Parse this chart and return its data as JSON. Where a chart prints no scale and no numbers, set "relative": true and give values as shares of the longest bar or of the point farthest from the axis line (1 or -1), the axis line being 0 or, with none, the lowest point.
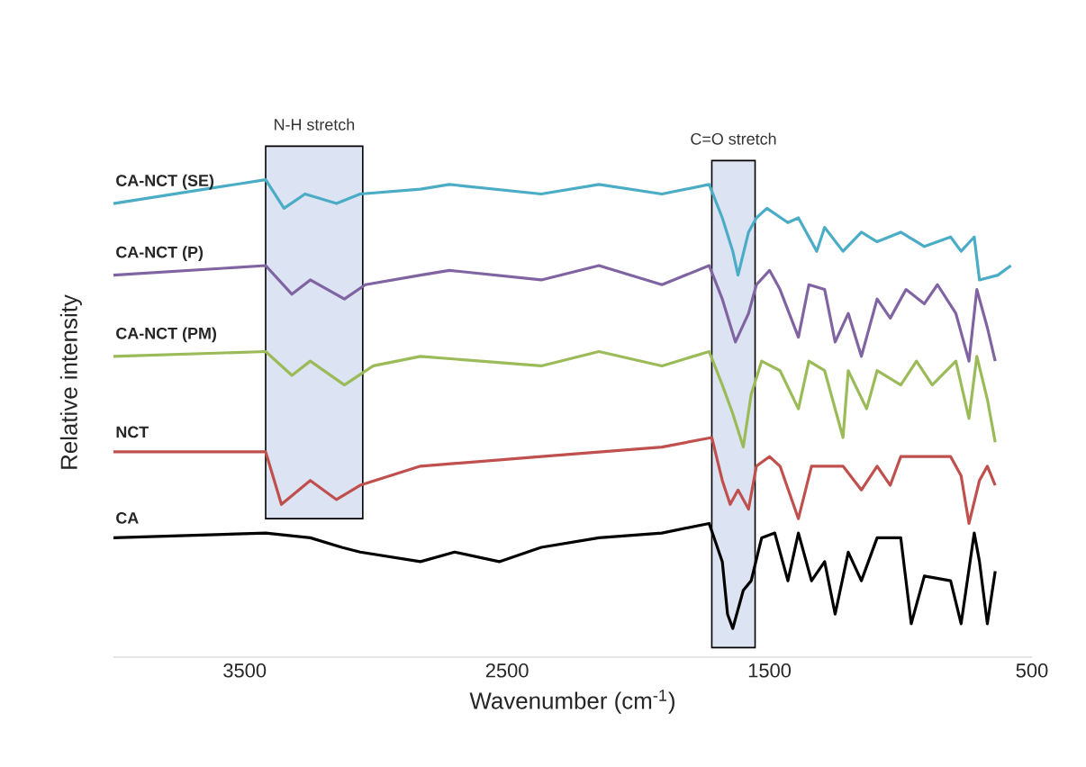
{
  "chart_data": {
    "type": "line",
    "relative": true,
    "xlabel": "Wavenumber (cm$^{-1}$)",
    "ylabel": "Relative intensity",
    "xlim": [
      4000,
      500
    ],
    "xticks": [
      3500,
      2500,
      1500,
      500
    ],
    "bands": [
      {
        "axis": "x",
        "from": 3420,
        "to": 3050,
        "label": "N-H stretch",
        "color": "#dce3f2"
      },
      {
        "axis": "x",
        "from": 1720,
        "to": 1555,
        "label": "C=O stretch",
        "color": "#dce3f2"
      }
    ],
    "series": [
      {
        "name": "CA-NCT (SE)",
        "color": "#4bacc6",
        "x": [
          4000,
          3420,
          3350,
          3270,
          3150,
          3060,
          2830,
          2720,
          2370,
          2150,
          1910,
          1730,
          1680,
          1640,
          1620,
          1580,
          1550,
          1510,
          1430,
          1390,
          1320,
          1290,
          1220,
          1150,
          1090,
          1000,
          910,
          810,
          770,
          720,
          700,
          630,
          580
        ],
        "values": [
          0.95,
          1.0,
          0.94,
          0.97,
          0.95,
          0.97,
          0.98,
          0.99,
          0.97,
          0.99,
          0.97,
          0.99,
          0.92,
          0.85,
          0.8,
          0.89,
          0.92,
          0.94,
          0.91,
          0.92,
          0.85,
          0.9,
          0.85,
          0.89,
          0.87,
          0.89,
          0.86,
          0.88,
          0.85,
          0.88,
          0.79,
          0.8,
          0.82
        ]
      },
      {
        "name": "CA-NCT (P)",
        "color": "#8064a2",
        "x": [
          4000,
          3420,
          3320,
          3250,
          3120,
          3040,
          2830,
          2720,
          2370,
          2150,
          1910,
          1730,
          1680,
          1630,
          1580,
          1550,
          1500,
          1460,
          1390,
          1350,
          1290,
          1250,
          1200,
          1150,
          1090,
          1040,
          980,
          910,
          860,
          790,
          740,
          710,
          670,
          640
        ],
        "values": [
          0.8,
          0.82,
          0.76,
          0.79,
          0.75,
          0.78,
          0.8,
          0.81,
          0.79,
          0.82,
          0.78,
          0.82,
          0.75,
          0.66,
          0.72,
          0.78,
          0.81,
          0.77,
          0.67,
          0.78,
          0.77,
          0.66,
          0.72,
          0.63,
          0.75,
          0.71,
          0.77,
          0.74,
          0.78,
          0.72,
          0.62,
          0.77,
          0.69,
          0.62
        ]
      },
      {
        "name": "CA-NCT (PM)",
        "color": "#9bbb59",
        "x": [
          4000,
          3420,
          3320,
          3250,
          3120,
          3010,
          2830,
          2370,
          2150,
          1910,
          1730,
          1680,
          1640,
          1600,
          1570,
          1530,
          1460,
          1390,
          1350,
          1290,
          1220,
          1200,
          1130,
          1090,
          1000,
          940,
          880,
          790,
          740,
          710,
          670,
          640
        ],
        "values": [
          0.63,
          0.64,
          0.59,
          0.62,
          0.57,
          0.61,
          0.63,
          0.61,
          0.64,
          0.61,
          0.64,
          0.57,
          0.51,
          0.44,
          0.55,
          0.62,
          0.6,
          0.52,
          0.62,
          0.6,
          0.46,
          0.6,
          0.52,
          0.6,
          0.57,
          0.62,
          0.57,
          0.62,
          0.5,
          0.63,
          0.54,
          0.45
        ]
      },
      {
        "name": "NCT",
        "color": "#c0504d",
        "x": [
          4000,
          3420,
          3360,
          3250,
          3150,
          3060,
          2830,
          2370,
          1910,
          1720,
          1680,
          1650,
          1620,
          1580,
          1550,
          1500,
          1460,
          1390,
          1340,
          1220,
          1150,
          1090,
          1040,
          1000,
          910,
          810,
          770,
          740,
          700,
          670,
          640
        ],
        "values": [
          0.43,
          0.43,
          0.32,
          0.37,
          0.33,
          0.36,
          0.4,
          0.42,
          0.44,
          0.46,
          0.37,
          0.32,
          0.35,
          0.31,
          0.4,
          0.42,
          0.4,
          0.29,
          0.4,
          0.4,
          0.35,
          0.4,
          0.36,
          0.42,
          0.42,
          0.42,
          0.38,
          0.28,
          0.37,
          0.4,
          0.36
        ]
      },
      {
        "name": "CA",
        "color": "#000000",
        "x": [
          4000,
          3420,
          3250,
          3130,
          3060,
          2830,
          2700,
          2530,
          2370,
          2150,
          1910,
          1730,
          1680,
          1660,
          1640,
          1600,
          1570,
          1530,
          1480,
          1430,
          1390,
          1340,
          1290,
          1250,
          1200,
          1150,
          1090,
          1000,
          960,
          910,
          810,
          770,
          720,
          700,
          670,
          640
        ],
        "values": [
          0.25,
          0.26,
          0.25,
          0.23,
          0.22,
          0.2,
          0.22,
          0.2,
          0.23,
          0.25,
          0.26,
          0.28,
          0.2,
          0.09,
          0.06,
          0.14,
          0.16,
          0.25,
          0.26,
          0.16,
          0.26,
          0.16,
          0.2,
          0.09,
          0.22,
          0.16,
          0.25,
          0.25,
          0.07,
          0.17,
          0.16,
          0.07,
          0.26,
          0.2,
          0.07,
          0.18
        ]
      }
    ]
  }
}
